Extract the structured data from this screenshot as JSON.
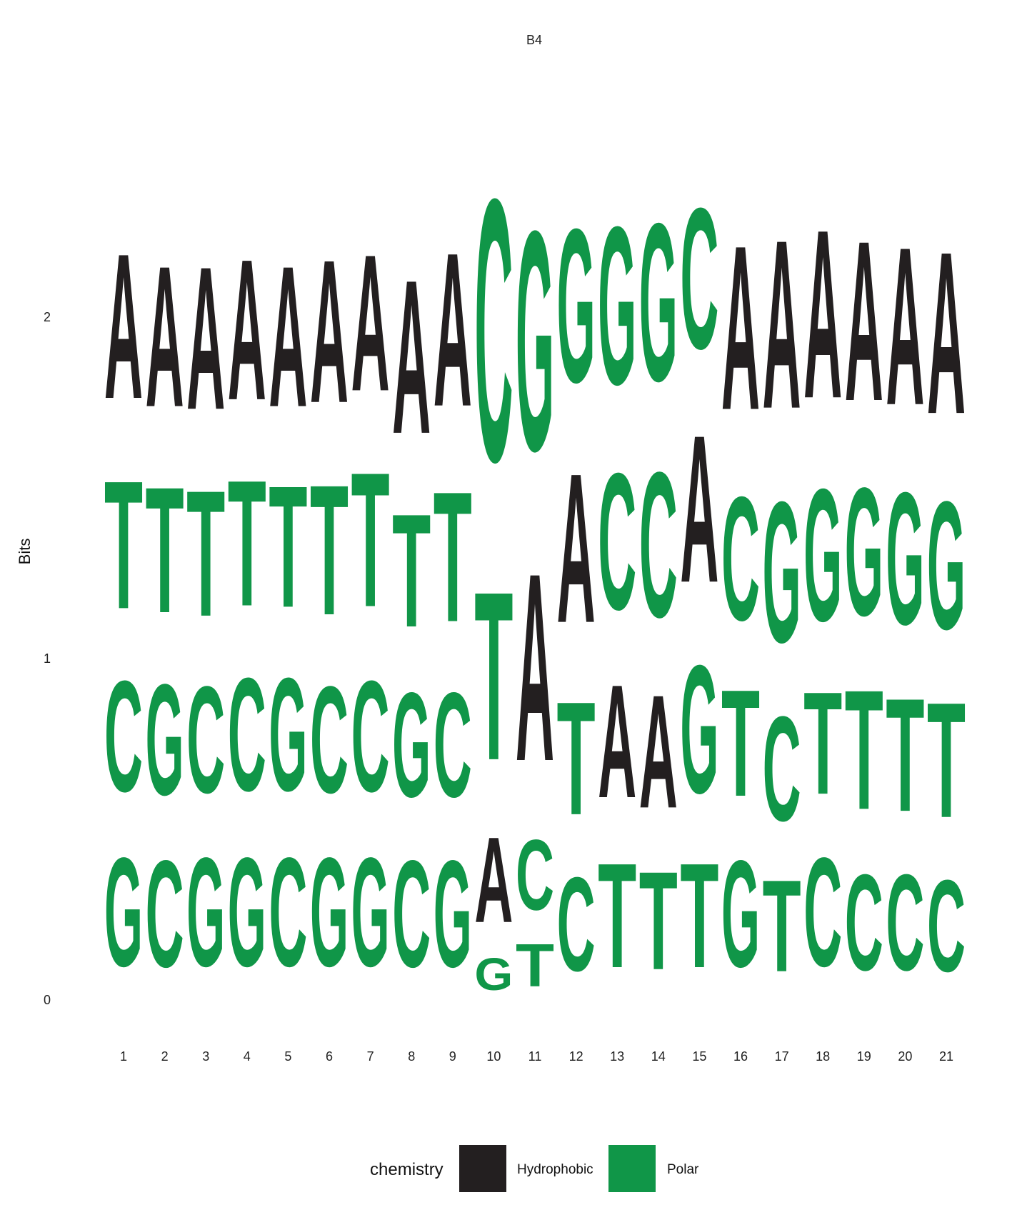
{
  "chart_data": {
    "type": "sequence-logo",
    "title": "B4",
    "ylabel": "Bits",
    "xlabel": "",
    "ylim": [
      0,
      2.4
    ],
    "yticks": [
      "0",
      "1",
      "2"
    ],
    "positions": [
      "1",
      "2",
      "3",
      "4",
      "5",
      "6",
      "7",
      "8",
      "9",
      "10",
      "11",
      "12",
      "13",
      "14",
      "15",
      "16",
      "17",
      "18",
      "19",
      "20",
      "21"
    ],
    "legend": {
      "title": "chemistry",
      "items": [
        {
          "label": "Hydrophobic",
          "color": "#231F20"
        },
        {
          "label": "Polar",
          "color": "#109648"
        }
      ]
    },
    "letter_colors": {
      "A": "#231F20",
      "C": "#109648",
      "G": "#109648",
      "T": "#109648"
    },
    "stacks": [
      [
        {
          "letter": "G",
          "bits": 0.51
        },
        {
          "letter": "C",
          "bits": 0.52
        },
        {
          "letter": "T",
          "bits": 0.6
        },
        {
          "letter": "A",
          "bits": 0.68
        }
      ],
      [
        {
          "letter": "C",
          "bits": 0.5
        },
        {
          "letter": "G",
          "bits": 0.52
        },
        {
          "letter": "T",
          "bits": 0.59
        },
        {
          "letter": "A",
          "bits": 0.66
        }
      ],
      [
        {
          "letter": "G",
          "bits": 0.51
        },
        {
          "letter": "C",
          "bits": 0.5
        },
        {
          "letter": "T",
          "bits": 0.59
        },
        {
          "letter": "A",
          "bits": 0.67
        }
      ],
      [
        {
          "letter": "G",
          "bits": 0.51
        },
        {
          "letter": "C",
          "bits": 0.53
        },
        {
          "letter": "T",
          "bits": 0.59
        },
        {
          "letter": "A",
          "bits": 0.66
        }
      ],
      [
        {
          "letter": "C",
          "bits": 0.51
        },
        {
          "letter": "G",
          "bits": 0.53
        },
        {
          "letter": "T",
          "bits": 0.57
        },
        {
          "letter": "A",
          "bits": 0.66
        }
      ],
      [
        {
          "letter": "G",
          "bits": 0.51
        },
        {
          "letter": "C",
          "bits": 0.5
        },
        {
          "letter": "T",
          "bits": 0.61
        },
        {
          "letter": "A",
          "bits": 0.67
        }
      ],
      [
        {
          "letter": "G",
          "bits": 0.51
        },
        {
          "letter": "C",
          "bits": 0.52
        },
        {
          "letter": "T",
          "bits": 0.63
        },
        {
          "letter": "A",
          "bits": 0.64
        }
      ],
      [
        {
          "letter": "C",
          "bits": 0.5
        },
        {
          "letter": "G",
          "bits": 0.49
        },
        {
          "letter": "T",
          "bits": 0.53
        },
        {
          "letter": "A",
          "bits": 0.72
        }
      ],
      [
        {
          "letter": "G",
          "bits": 0.5
        },
        {
          "letter": "C",
          "bits": 0.49
        },
        {
          "letter": "T",
          "bits": 0.61
        },
        {
          "letter": "A",
          "bits": 0.72
        }
      ],
      [
        {
          "letter": "G",
          "bits": 0.15
        },
        {
          "letter": "A",
          "bits": 0.4
        },
        {
          "letter": "T",
          "bits": 0.79
        },
        {
          "letter": "C",
          "bits": 1.23
        }
      ],
      [
        {
          "letter": "T",
          "bits": 0.2
        },
        {
          "letter": "C",
          "bits": 0.33
        },
        {
          "letter": "A",
          "bits": 0.88
        },
        {
          "letter": "G",
          "bits": 1.03
        }
      ],
      [
        {
          "letter": "C",
          "bits": 0.44
        },
        {
          "letter": "T",
          "bits": 0.53
        },
        {
          "letter": "A",
          "bits": 0.7
        },
        {
          "letter": "G",
          "bits": 0.72
        }
      ],
      [
        {
          "letter": "T",
          "bits": 0.49
        },
        {
          "letter": "A",
          "bits": 0.53
        },
        {
          "letter": "C",
          "bits": 0.64
        },
        {
          "letter": "G",
          "bits": 0.74
        }
      ],
      [
        {
          "letter": "T",
          "bits": 0.46
        },
        {
          "letter": "A",
          "bits": 0.53
        },
        {
          "letter": "C",
          "bits": 0.68
        },
        {
          "letter": "G",
          "bits": 0.74
        }
      ],
      [
        {
          "letter": "T",
          "bits": 0.49
        },
        {
          "letter": "G",
          "bits": 0.6
        },
        {
          "letter": "A",
          "bits": 0.69
        },
        {
          "letter": "C",
          "bits": 0.66
        }
      ],
      [
        {
          "letter": "G",
          "bits": 0.5
        },
        {
          "letter": "T",
          "bits": 0.5
        },
        {
          "letter": "C",
          "bits": 0.58
        },
        {
          "letter": "A",
          "bits": 0.77
        }
      ],
      [
        {
          "letter": "T",
          "bits": 0.43
        },
        {
          "letter": "C",
          "bits": 0.49
        },
        {
          "letter": "G",
          "bits": 0.66
        },
        {
          "letter": "A",
          "bits": 0.79
        }
      ],
      [
        {
          "letter": "C",
          "bits": 0.51
        },
        {
          "letter": "T",
          "bits": 0.48
        },
        {
          "letter": "G",
          "bits": 0.62
        },
        {
          "letter": "A",
          "bits": 0.79
        }
      ],
      [
        {
          "letter": "C",
          "bits": 0.45
        },
        {
          "letter": "T",
          "bits": 0.56
        },
        {
          "letter": "G",
          "bits": 0.6
        },
        {
          "letter": "A",
          "bits": 0.75
        }
      ],
      [
        {
          "letter": "C",
          "bits": 0.45
        },
        {
          "letter": "T",
          "bits": 0.53
        },
        {
          "letter": "G",
          "bits": 0.62
        },
        {
          "letter": "A",
          "bits": 0.74
        }
      ],
      [
        {
          "letter": "C",
          "bits": 0.43
        },
        {
          "letter": "T",
          "bits": 0.54
        },
        {
          "letter": "G",
          "bits": 0.6
        },
        {
          "letter": "A",
          "bits": 0.76
        }
      ]
    ]
  }
}
